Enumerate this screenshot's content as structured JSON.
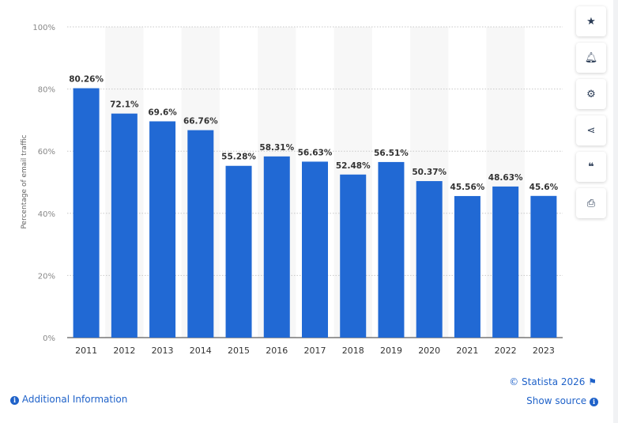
{
  "chart_data": {
    "type": "bar",
    "categories": [
      "2011",
      "2012",
      "2013",
      "2014",
      "2015",
      "2016",
      "2017",
      "2018",
      "2019",
      "2020",
      "2021",
      "2022",
      "2023"
    ],
    "values": [
      80.26,
      72.1,
      69.6,
      66.76,
      55.28,
      58.31,
      56.63,
      52.48,
      56.51,
      50.37,
      45.56,
      48.63,
      45.6
    ],
    "data_labels": [
      "80.26%",
      "72.1%",
      "69.6%",
      "66.76%",
      "55.28%",
      "58.31%",
      "56.63%",
      "52.48%",
      "56.51%",
      "50.37%",
      "45.56%",
      "48.63%",
      "45.6%"
    ],
    "ylabel": "Percentage of email traffic",
    "ylim": [
      0,
      100
    ],
    "yticks": [
      "0%",
      "20%",
      "40%",
      "60%",
      "80%",
      "100%"
    ],
    "grid": true,
    "bar_color": "#2169d4"
  },
  "sidebar": {
    "icons": [
      "star-icon",
      "bell-icon",
      "gear-icon",
      "share-icon",
      "quote-icon",
      "print-icon"
    ]
  },
  "footer": {
    "additional_info": "Additional Information",
    "copyright": "© Statista 2026",
    "show_source": "Show source"
  }
}
